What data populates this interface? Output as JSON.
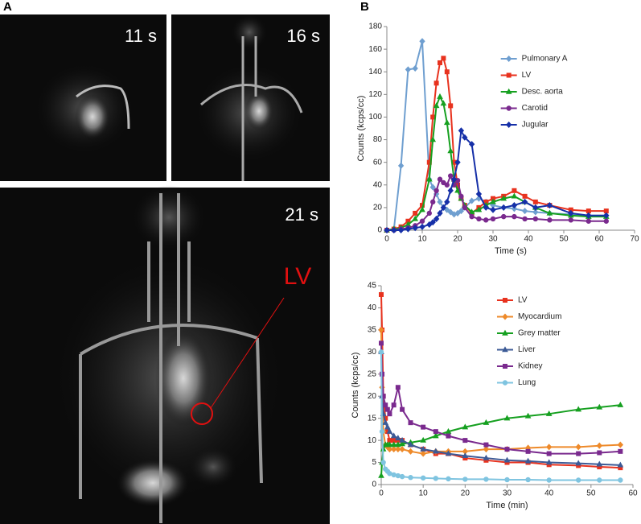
{
  "panels": {
    "label_a": "A",
    "label_b": "B",
    "frames": [
      "11 s",
      "16 s",
      "21 s"
    ],
    "roi_label": "LV"
  },
  "chart_data": [
    {
      "type": "line",
      "x_label": "Time (s)",
      "y_label": "Counts (kcps/cc)",
      "x": [
        0,
        2,
        4,
        6,
        8,
        10,
        12,
        13,
        14,
        15,
        16,
        17,
        18,
        19,
        20,
        21,
        22,
        24,
        26,
        28,
        30,
        33,
        36,
        39,
        42,
        46,
        52,
        57,
        62
      ],
      "xlim": [
        0,
        70
      ],
      "xticks": [
        0,
        10,
        20,
        30,
        40,
        50,
        60,
        70
      ],
      "ylim": [
        0,
        180
      ],
      "yticks": [
        0,
        20,
        40,
        60,
        80,
        100,
        120,
        140,
        160,
        180
      ],
      "legend": "upper right",
      "series": [
        {
          "name": "Pulmonary A",
          "color": "#6f9fd0",
          "marker": "diamond",
          "values": [
            0,
            1,
            57,
            142,
            143,
            167,
            45,
            38,
            32,
            25,
            20,
            18,
            16,
            14,
            15,
            17,
            20,
            26,
            28,
            25,
            22,
            20,
            19,
            17,
            16,
            15,
            14,
            13,
            13
          ]
        },
        {
          "name": "LV",
          "color": "#e8321e",
          "marker": "square",
          "values": [
            0,
            1,
            3,
            8,
            15,
            22,
            60,
            100,
            130,
            148,
            152,
            140,
            110,
            60,
            40,
            28,
            22,
            15,
            20,
            25,
            28,
            30,
            35,
            30,
            25,
            22,
            18,
            17,
            17
          ]
        },
        {
          "name": "Desc. aorta",
          "color": "#16a020",
          "marker": "triangle",
          "values": [
            0,
            1,
            2,
            5,
            10,
            18,
            45,
            80,
            110,
            118,
            112,
            95,
            70,
            45,
            35,
            28,
            22,
            16,
            18,
            22,
            25,
            28,
            30,
            25,
            20,
            15,
            13,
            12,
            12
          ]
        },
        {
          "name": "Carotid",
          "color": "#7a2a8e",
          "marker": "circle",
          "values": [
            0,
            0,
            1,
            2,
            4,
            8,
            15,
            25,
            35,
            45,
            42,
            40,
            48,
            40,
            44,
            30,
            20,
            12,
            10,
            9,
            10,
            12,
            12,
            10,
            10,
            9,
            9,
            8,
            8
          ]
        },
        {
          "name": "Jugular",
          "color": "#1630a8",
          "marker": "diamond",
          "values": [
            0,
            0,
            0,
            1,
            2,
            3,
            5,
            7,
            10,
            15,
            20,
            25,
            35,
            45,
            60,
            88,
            82,
            76,
            32,
            20,
            18,
            20,
            22,
            25,
            20,
            22,
            15,
            13,
            13
          ]
        }
      ]
    },
    {
      "type": "line",
      "x_label": "Time (min)",
      "y_label": "Counts (kcps/cc)",
      "x": [
        0,
        0.2,
        0.5,
        1,
        1.5,
        2,
        3,
        4,
        5,
        7,
        10,
        13,
        16,
        20,
        25,
        30,
        35,
        40,
        47,
        52,
        57
      ],
      "xlim": [
        0,
        60
      ],
      "xticks": [
        0,
        10,
        20,
        30,
        40,
        50,
        60
      ],
      "ylim": [
        0,
        45
      ],
      "yticks": [
        0,
        5,
        10,
        15,
        20,
        25,
        30,
        35,
        40,
        45
      ],
      "legend": "upper right",
      "series": [
        {
          "name": "LV",
          "color": "#e8321e",
          "marker": "square",
          "values": [
            43,
            35,
            20,
            15,
            12,
            10,
            10,
            10,
            10,
            9,
            8,
            7,
            7,
            6,
            5.5,
            5,
            5,
            4.5,
            4.3,
            4,
            3.8
          ]
        },
        {
          "name": "Myocardium",
          "color": "#ee8a2a",
          "marker": "diamond",
          "values": [
            35,
            22,
            12,
            9,
            8.5,
            8,
            8,
            8,
            8,
            7.5,
            7,
            7.5,
            7.5,
            7.5,
            8,
            8,
            8.3,
            8.5,
            8.5,
            8.8,
            9
          ]
        },
        {
          "name": "Grey matter",
          "color": "#16a020",
          "marker": "triangle",
          "values": [
            2,
            5,
            8,
            9,
            9,
            9,
            9,
            9,
            9.2,
            9.5,
            10,
            11,
            12,
            13,
            14,
            15,
            15.5,
            16,
            17,
            17.5,
            18
          ]
        },
        {
          "name": "Liver",
          "color": "#3c5a96",
          "marker": "triangle",
          "values": [
            30,
            20,
            16,
            14,
            13,
            12,
            11,
            10.5,
            10,
            9,
            8,
            7.5,
            7,
            6.5,
            6,
            5.5,
            5.3,
            5,
            4.8,
            4.6,
            4.4
          ]
        },
        {
          "name": "Kidney",
          "color": "#7a2a8e",
          "marker": "square",
          "values": [
            32,
            25,
            20,
            18,
            17,
            16,
            18,
            22,
            17,
            14,
            13,
            12,
            11,
            10,
            9,
            8,
            7.5,
            7,
            7,
            7.2,
            7.5
          ]
        },
        {
          "name": "Lung",
          "color": "#7fc4e0",
          "marker": "circle",
          "values": [
            30,
            12,
            5,
            3.5,
            3,
            2.5,
            2.2,
            2,
            1.8,
            1.6,
            1.5,
            1.4,
            1.3,
            1.2,
            1.2,
            1.1,
            1.1,
            1,
            1,
            1,
            1
          ]
        }
      ]
    }
  ]
}
